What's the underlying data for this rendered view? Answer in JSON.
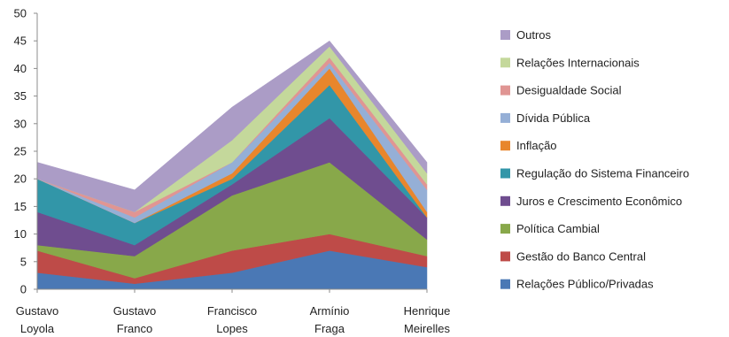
{
  "chart_data": {
    "type": "area",
    "stacked": true,
    "categories": [
      [
        "Gustavo",
        "Loyola"
      ],
      [
        "Gustavo",
        "Franco"
      ],
      [
        "Francisco",
        "Lopes"
      ],
      [
        "Armínio",
        "Fraga"
      ],
      [
        "Henrique",
        "Meirelles"
      ]
    ],
    "ylim": [
      0,
      50
    ],
    "yticks": [
      0,
      5,
      10,
      15,
      20,
      25,
      30,
      35,
      40,
      45,
      50
    ],
    "grid": false,
    "legend_position": "right",
    "series": [
      {
        "name": "Relações Público/Privadas",
        "color": "#4a78b5",
        "values": [
          3,
          1,
          3,
          7,
          4
        ]
      },
      {
        "name": "Gestão do Banco Central",
        "color": "#be4b48",
        "values": [
          4,
          1,
          4,
          3,
          2
        ]
      },
      {
        "name": "Política Cambial",
        "color": "#88a84a",
        "values": [
          1,
          4,
          10,
          13,
          3
        ]
      },
      {
        "name": "Juros e Crescimento Econômico",
        "color": "#6f4d8f",
        "values": [
          6,
          2,
          2,
          8,
          4
        ]
      },
      {
        "name": "Regulação do Sistema Financeiro",
        "color": "#3296a8",
        "values": [
          6,
          4,
          1,
          6,
          0
        ]
      },
      {
        "name": "Inflação",
        "color": "#e8862c",
        "values": [
          0,
          0,
          1,
          3,
          1
        ]
      },
      {
        "name": "Dívida Pública",
        "color": "#95afd6",
        "values": [
          0,
          1,
          2,
          1,
          4
        ]
      },
      {
        "name": "Desigualdade Social",
        "color": "#e09593",
        "values": [
          0,
          1,
          0,
          1,
          1
        ]
      },
      {
        "name": "Relações Internacionais",
        "color": "#c4d89b",
        "values": [
          0,
          0,
          4,
          2,
          2
        ]
      },
      {
        "name": "Outros",
        "color": "#ab9cc6",
        "values": [
          3,
          4,
          6,
          1,
          2
        ]
      }
    ]
  }
}
